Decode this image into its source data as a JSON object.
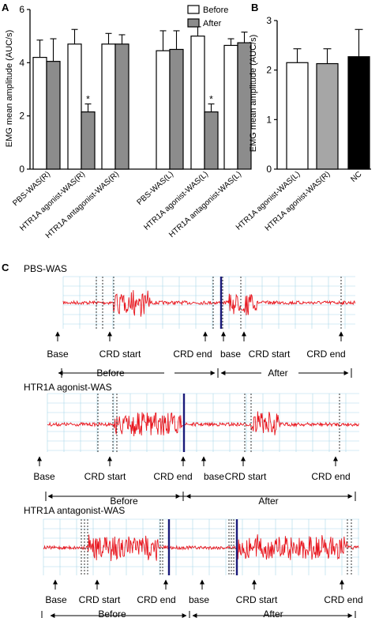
{
  "panel_labels": [
    "A",
    "B",
    "C"
  ],
  "colors": {
    "before": "#ffffff",
    "after": "#8c8c8c",
    "nc": "#000000",
    "trace": "#e8141c",
    "marker": "#1a1a7a",
    "grid": "#a9d8ea"
  },
  "chart_data": [
    {
      "type": "bar",
      "panel": "A",
      "ylabel": "EMG  mean amplitude  (AUC/s)",
      "ylim": [
        0,
        6
      ],
      "yticks": [
        0,
        2,
        4,
        6
      ],
      "categories": [
        "PBS-WAS(R)",
        "HTR1A agonist-WAS(R)",
        "HTR1A antagonist-WAS(R)",
        "PBS-WAS(L)",
        "HTR1A agonist-WAS(L)",
        "HTR1A antagonist-WAS(L)"
      ],
      "legend": {
        "position": "top-right",
        "entries": [
          "Before",
          "After"
        ]
      },
      "series": [
        {
          "name": "Before",
          "color": "#ffffff",
          "values": [
            4.2,
            4.7,
            4.7,
            4.45,
            5.0,
            4.65
          ],
          "errors": [
            0.65,
            0.55,
            0.4,
            0.75,
            0.35,
            0.25
          ]
        },
        {
          "name": "After",
          "color": "#8c8c8c",
          "values": [
            4.05,
            2.15,
            4.7,
            4.5,
            2.15,
            4.75
          ],
          "errors": [
            0.85,
            0.3,
            0.35,
            0.7,
            0.3,
            0.4
          ]
        }
      ],
      "annotations": [
        {
          "category_index": 1,
          "series": "After",
          "text": "*"
        },
        {
          "category_index": 4,
          "series": "After",
          "text": "*"
        }
      ]
    },
    {
      "type": "bar",
      "panel": "B",
      "ylabel": "EMG  mean amplitude  (AUC/s)",
      "ylim": [
        0,
        3
      ],
      "yticks": [
        0,
        1,
        2,
        3
      ],
      "categories": [
        "HTR1A agonist-WAS(L)",
        "HTR1A agonist-WAS(R)",
        "NC"
      ],
      "values": [
        2.15,
        2.13,
        2.27
      ],
      "errors": [
        0.28,
        0.3,
        0.55
      ],
      "colors": [
        "#ffffff",
        "#a6a6a6",
        "#000000"
      ]
    }
  ],
  "traces": [
    {
      "title": "PBS-WAS",
      "labels": [
        "Base",
        "CRD start",
        "CRD end",
        "base",
        "CRD start",
        "CRD end"
      ],
      "phases": [
        "Before",
        "After"
      ]
    },
    {
      "title": "HTR1A agonist-WAS",
      "labels": [
        "Base",
        "CRD start",
        "CRD end",
        "base",
        "CRD start",
        "CRD end"
      ],
      "phases": [
        "Before",
        "After"
      ]
    },
    {
      "title": "HTR1A antagonist-WAS",
      "labels": [
        "Base",
        "CRD start",
        "CRD end",
        "base",
        "CRD start",
        "CRD end"
      ],
      "phases": [
        "Before",
        "After"
      ]
    }
  ]
}
